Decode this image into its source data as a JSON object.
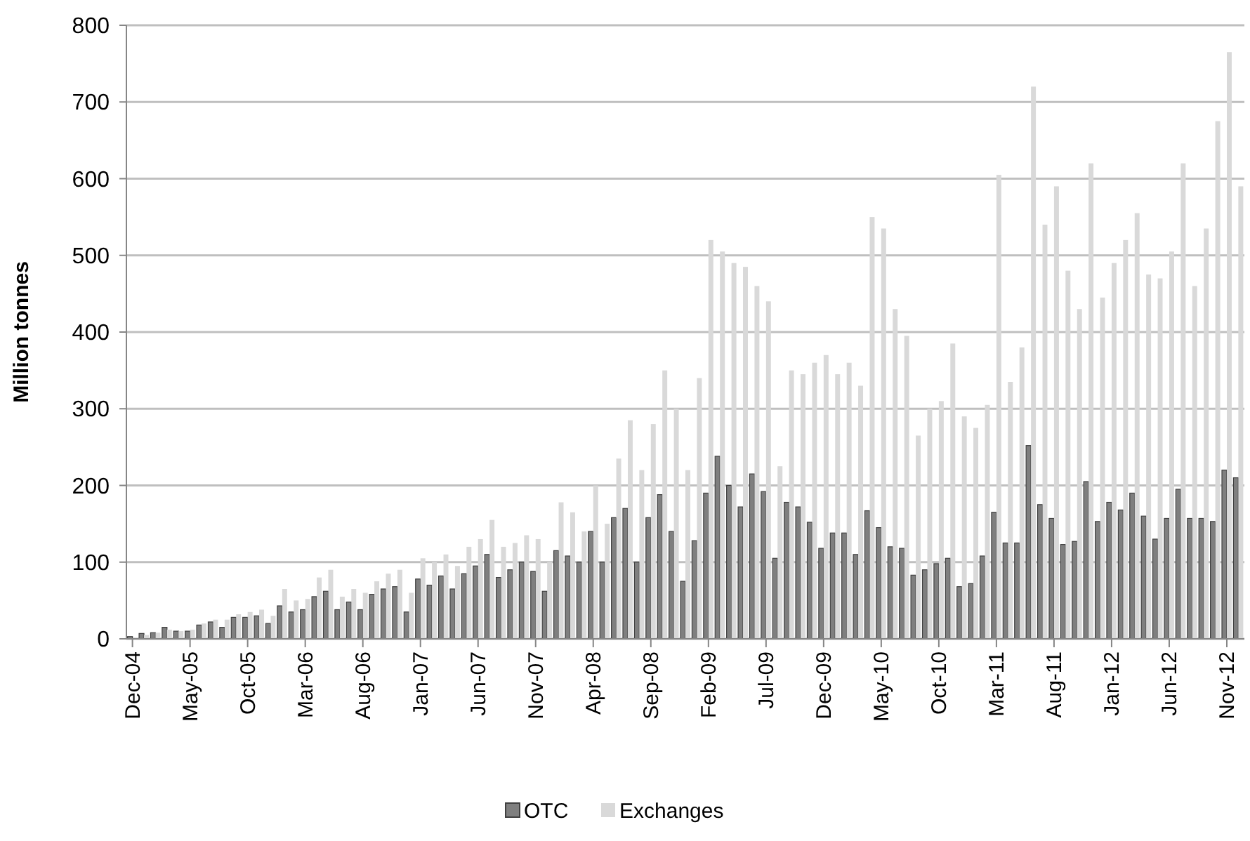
{
  "chart_data": {
    "type": "bar",
    "ylabel": "Million tonnes",
    "categories": [
      "Dec-04",
      null,
      null,
      null,
      null,
      "May-05",
      null,
      null,
      null,
      null,
      "Oct-05",
      null,
      null,
      null,
      null,
      "Mar-06",
      null,
      null,
      null,
      null,
      "Aug-06",
      null,
      null,
      null,
      null,
      "Jan-07",
      null,
      null,
      null,
      null,
      "Jun-07",
      null,
      null,
      null,
      null,
      "Nov-07",
      null,
      null,
      null,
      null,
      "Apr-08",
      null,
      null,
      null,
      null,
      "Sep-08",
      null,
      null,
      null,
      null,
      "Feb-09",
      null,
      null,
      null,
      null,
      "Jul-09",
      null,
      null,
      null,
      null,
      "Dec-09",
      null,
      null,
      null,
      null,
      "May-10",
      null,
      null,
      null,
      null,
      "Oct-10",
      null,
      null,
      null,
      null,
      "Mar-11",
      null,
      null,
      null,
      null,
      "Aug-11",
      null,
      null,
      null,
      null,
      "Jan-12",
      null,
      null,
      null,
      null,
      "Jun-12",
      null,
      null,
      null,
      null,
      "Nov-12",
      null
    ],
    "series": [
      {
        "name": "OTC",
        "color": "#7f7f7f",
        "values": [
          3,
          7,
          8,
          15,
          10,
          10,
          18,
          22,
          15,
          28,
          28,
          30,
          20,
          43,
          35,
          38,
          55,
          62,
          38,
          48,
          38,
          58,
          65,
          68,
          35,
          78,
          70,
          82,
          65,
          85,
          95,
          110,
          80,
          90,
          100,
          88,
          62,
          115,
          108,
          100,
          140,
          100,
          158,
          170,
          100,
          158,
          188,
          140,
          75,
          128,
          190,
          238,
          200,
          172,
          215,
          192,
          105,
          178,
          172,
          152,
          118,
          138,
          138,
          110,
          167,
          145,
          120,
          118,
          83,
          90,
          98,
          105,
          68,
          72,
          108,
          165,
          125,
          125,
          252,
          175,
          157,
          123,
          127,
          205,
          153,
          178,
          168,
          190,
          160,
          130,
          157,
          195,
          157,
          157,
          153,
          220,
          210
        ]
      },
      {
        "name": "Exchanges",
        "color": "#d9d9d9",
        "values": [
          null,
          5,
          8,
          12,
          10,
          12,
          20,
          25,
          25,
          32,
          35,
          38,
          30,
          65,
          50,
          52,
          80,
          90,
          55,
          65,
          60,
          75,
          85,
          90,
          60,
          105,
          100,
          110,
          95,
          120,
          130,
          155,
          120,
          125,
          135,
          130,
          100,
          178,
          165,
          140,
          200,
          150,
          235,
          285,
          220,
          280,
          350,
          300,
          220,
          340,
          520,
          505,
          490,
          485,
          460,
          440,
          225,
          350,
          345,
          360,
          370,
          345,
          360,
          330,
          550,
          535,
          430,
          395,
          265,
          300,
          310,
          385,
          290,
          275,
          305,
          605,
          335,
          380,
          720,
          540,
          590,
          480,
          430,
          620,
          445,
          490,
          520,
          555,
          475,
          470,
          505,
          620,
          460,
          535,
          675,
          765,
          590
        ]
      }
    ],
    "ylim": [
      0,
      800
    ],
    "yticks": [
      0,
      100,
      200,
      300,
      400,
      500,
      600,
      700,
      800
    ],
    "grid": true,
    "legend": "bottom"
  }
}
